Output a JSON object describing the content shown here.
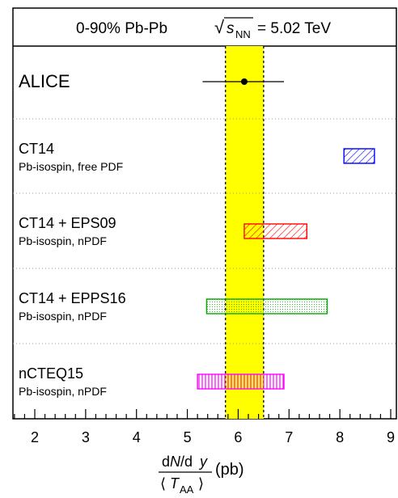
{
  "chart_data": {
    "type": "error-bar-comparison",
    "title": {
      "prefix": "0-90% Pb-Pb",
      "sqrt_symbol": "√",
      "s_var": "s",
      "s_subscript": "NN",
      "suffix": "= 5.02 TeV"
    },
    "xlabel": {
      "num_d": "d",
      "num_N": "N",
      "num_rest": "/d",
      "num_y": "y",
      "den_open": "⟨",
      "den_T": "T",
      "den_sub": "AA",
      "den_close": "⟩",
      "unit": "(pb)"
    },
    "xlim": [
      1.6,
      9.05
    ],
    "xticks": [
      2,
      3,
      4,
      5,
      6,
      7,
      8,
      9
    ],
    "xtick_labels": [
      "2",
      "3",
      "4",
      "5",
      "6",
      "7",
      "8",
      "9"
    ],
    "minor_tick_step": 0.2,
    "grid": "dotted horizontal separators between rows",
    "band": {
      "center": 6.12,
      "low": 5.75,
      "high": 6.5,
      "color": "#ffff00"
    },
    "rows": [
      {
        "label": "ALICE",
        "sublabel": "",
        "kind": "point",
        "value": 6.12,
        "err_low": 5.3,
        "err_high": 6.9,
        "color": "#000000"
      },
      {
        "label": "CT14",
        "sublabel": "Pb-isospin, free PDF",
        "kind": "box",
        "low": 8.08,
        "high": 8.68,
        "color": "#0000ff",
        "pattern": "diagonal-hatch"
      },
      {
        "label": "CT14 + EPS09",
        "sublabel": "Pb-isospin, nPDF",
        "kind": "box",
        "low": 6.12,
        "high": 7.35,
        "color": "#ff0000",
        "pattern": "diagonal-hatch"
      },
      {
        "label": "CT14 + EPPS16",
        "sublabel": "Pb-isospin, nPDF",
        "kind": "box",
        "low": 5.38,
        "high": 7.75,
        "color": "#00aa00",
        "pattern": "dotted-fill"
      },
      {
        "label": "nCTEQ15",
        "sublabel": "Pb-isospin, nPDF",
        "kind": "box",
        "low": 5.2,
        "high": 6.9,
        "color": "#ff00ff",
        "pattern": "vertical-hatch"
      }
    ]
  }
}
